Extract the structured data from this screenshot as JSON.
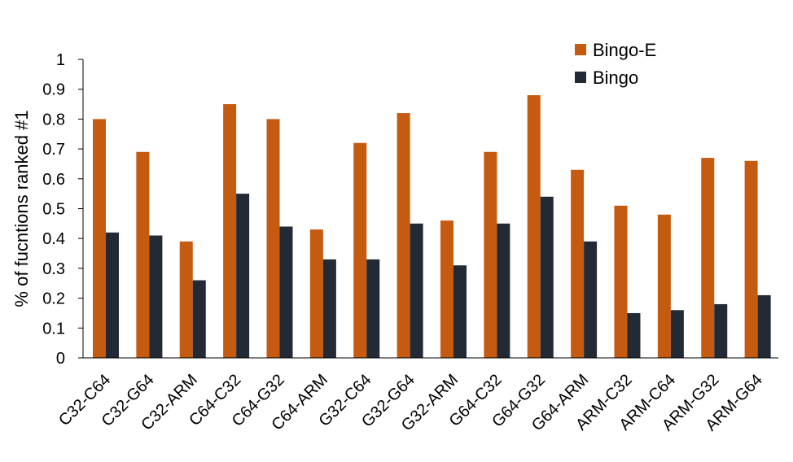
{
  "chart_data": {
    "type": "bar",
    "title": "",
    "xlabel": "",
    "ylabel": "% of fucntions ranked #1",
    "ylim": [
      0,
      1
    ],
    "yticks": [
      "0",
      "0.1",
      "0.2",
      "0.3",
      "0.4",
      "0.5",
      "0.6",
      "0.7",
      "0.8",
      "0.9",
      "1"
    ],
    "grid": false,
    "legend_position": "top-right",
    "categories": [
      "C32-C64",
      "C32-G64",
      "C32-ARM",
      "C64-C32",
      "C64-G32",
      "C64-ARM",
      "G32-C64",
      "G32-G64",
      "G32-ARM",
      "G64-C32",
      "G64-G32",
      "G64-ARM",
      "ARM-C32",
      "ARM-C64",
      "ARM-G32",
      "ARM-G64"
    ],
    "series": [
      {
        "name": "Bingo-E",
        "color": "#C55A11",
        "values": [
          0.8,
          0.69,
          0.39,
          0.85,
          0.8,
          0.43,
          0.72,
          0.82,
          0.46,
          0.69,
          0.88,
          0.63,
          0.51,
          0.48,
          0.67,
          0.66
        ]
      },
      {
        "name": "Bingo",
        "color": "#222A35",
        "values": [
          0.42,
          0.41,
          0.26,
          0.55,
          0.44,
          0.33,
          0.33,
          0.45,
          0.31,
          0.45,
          0.54,
          0.39,
          0.15,
          0.16,
          0.18,
          0.21
        ]
      }
    ]
  }
}
